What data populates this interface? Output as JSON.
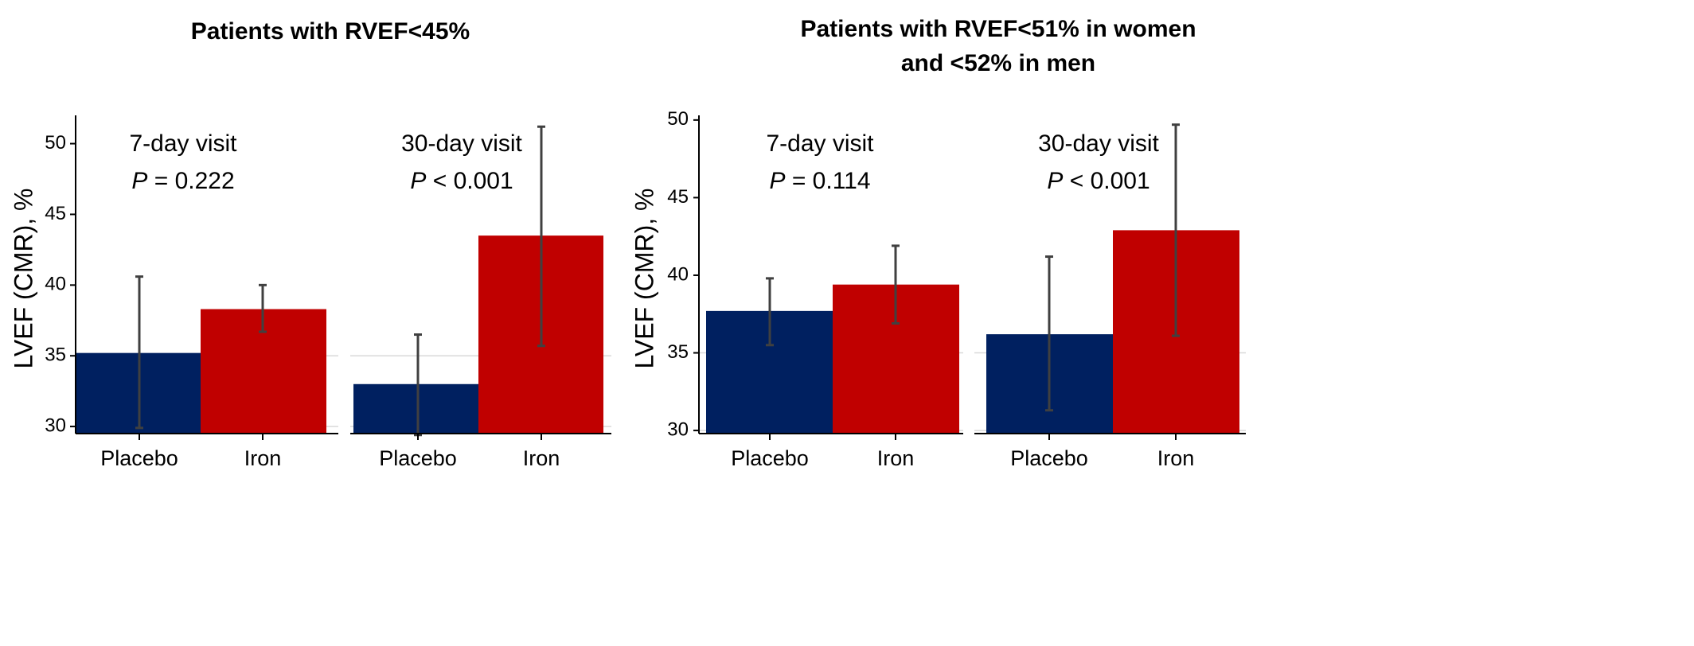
{
  "figure": {
    "charts": [
      {
        "title_lines": [
          "Patients with RVEF<45%"
        ],
        "ylabel": "LVEF (CMR), %",
        "ylim": [
          29.5,
          52
        ],
        "yticks": [
          30,
          35,
          40,
          45,
          50
        ],
        "ytick_labels": [
          "30",
          "35",
          "40",
          "45",
          "50"
        ],
        "grid_lines": [
          30,
          35
        ]
      },
      {
        "title_lines": [
          "Patients with RVEF<51% in women",
          "and <52% in men"
        ],
        "ylabel": "LVEF (CMR), %",
        "ylim": [
          29.8,
          50.3
        ],
        "yticks": [
          30,
          35,
          40,
          45,
          50
        ],
        "ytick_labels": [
          "30",
          "35",
          "40",
          "45",
          "50"
        ],
        "grid_lines": [
          30,
          35
        ]
      }
    ]
  },
  "colors": {
    "placebo": "#002060",
    "iron": "#c00000",
    "errorbar": "#404040",
    "axis": "#000000",
    "grid": "#d9d9d9"
  },
  "chart_data": [
    {
      "type": "bar",
      "title": "Patients with RVEF<45%",
      "ylabel": "LVEF (CMR), %",
      "ylim": [
        29.5,
        52
      ],
      "categories": [
        "Placebo",
        "Iron"
      ],
      "panels": [
        {
          "visit": "7-day visit",
          "p_label": "P",
          "p_text": " = 0.222",
          "series": [
            {
              "name": "Placebo",
              "value": 35.2,
              "error_low": 29.9,
              "error_high": 40.6
            },
            {
              "name": "Iron",
              "value": 38.3,
              "error_low": 36.7,
              "error_high": 40.0
            }
          ]
        },
        {
          "visit": "30-day visit",
          "p_label": "P",
          "p_text": " < 0.001",
          "series": [
            {
              "name": "Placebo",
              "value": 33.0,
              "error_low": 29.4,
              "error_high": 36.5
            },
            {
              "name": "Iron",
              "value": 43.5,
              "error_low": 35.7,
              "error_high": 51.2
            }
          ]
        }
      ]
    },
    {
      "type": "bar",
      "title": "Patients with RVEF<51% in women and <52% in men",
      "ylabel": "LVEF (CMR), %",
      "ylim": [
        29.8,
        50.3
      ],
      "categories": [
        "Placebo",
        "Iron"
      ],
      "panels": [
        {
          "visit": "7-day visit",
          "p_label": "P",
          "p_text": " = 0.114",
          "series": [
            {
              "name": "Placebo",
              "value": 37.7,
              "error_low": 35.5,
              "error_high": 39.8
            },
            {
              "name": "Iron",
              "value": 39.4,
              "error_low": 36.9,
              "error_high": 41.9
            }
          ]
        },
        {
          "visit": "30-day visit",
          "p_label": "P",
          "p_text": " < 0.001",
          "series": [
            {
              "name": "Placebo",
              "value": 36.2,
              "error_low": 31.3,
              "error_high": 41.2
            },
            {
              "name": "Iron",
              "value": 42.9,
              "error_low": 36.1,
              "error_high": 49.7
            }
          ]
        }
      ]
    }
  ]
}
